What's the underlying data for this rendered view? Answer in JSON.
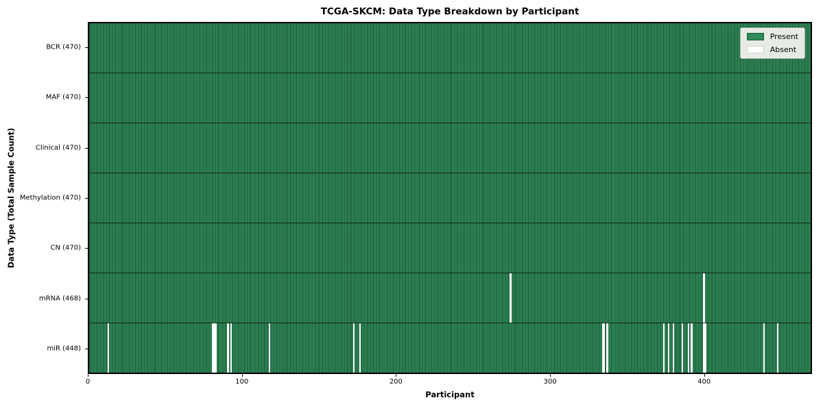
{
  "figure": {
    "title": "TCGA-SKCM: Data Type Breakdown by Participant",
    "xlabel": "Participant",
    "ylabel": "Data Type (Total Sample Count)"
  },
  "legend": {
    "position": "upper-right",
    "items": [
      {
        "label": "Present",
        "color": "#2e8b57"
      },
      {
        "label": "Absent",
        "color": "#ffffff"
      }
    ]
  },
  "chart_data": {
    "type": "heatmap",
    "title": "TCGA-SKCM: Data Type Breakdown by Participant",
    "xlabel": "Participant",
    "ylabel": "Data Type (Total Sample Count)",
    "n_participants": 470,
    "x_range": [
      0,
      470
    ],
    "x_ticks": [
      0,
      100,
      200,
      300,
      400
    ],
    "grid": false,
    "legend_entries": [
      "Present",
      "Absent"
    ],
    "legend_position": "upper right",
    "colors": {
      "present_fill": "#2e8b57",
      "bar_edge": "#1d5134",
      "absent": "#ffffff",
      "row_separator": "#13271a"
    },
    "rows": [
      {
        "data_type": "BCR",
        "label": "BCR (470)",
        "present_count": 470,
        "total": 470,
        "absent_participants": []
      },
      {
        "data_type": "MAF",
        "label": "MAF (470)",
        "present_count": 470,
        "total": 470,
        "absent_participants": []
      },
      {
        "data_type": "Clinical",
        "label": "Clinical (470)",
        "present_count": 470,
        "total": 470,
        "absent_participants": []
      },
      {
        "data_type": "Methylation",
        "label": "Methylation (470)",
        "present_count": 470,
        "total": 470,
        "absent_participants": []
      },
      {
        "data_type": "CN",
        "label": "CN (470)",
        "present_count": 470,
        "total": 470,
        "absent_participants": []
      },
      {
        "data_type": "mRNA",
        "label": "mRNA (468)",
        "present_count": 468,
        "total": 470,
        "absent_participants": [
          274,
          400
        ]
      },
      {
        "data_type": "miR",
        "label": "miR (448)",
        "present_count": 448,
        "total": 470,
        "absent_participants": [
          12,
          80,
          81,
          82,
          90,
          92,
          117,
          172,
          176,
          334,
          335,
          337,
          374,
          377,
          380,
          386,
          390,
          392,
          400,
          401,
          439,
          448
        ]
      }
    ]
  }
}
